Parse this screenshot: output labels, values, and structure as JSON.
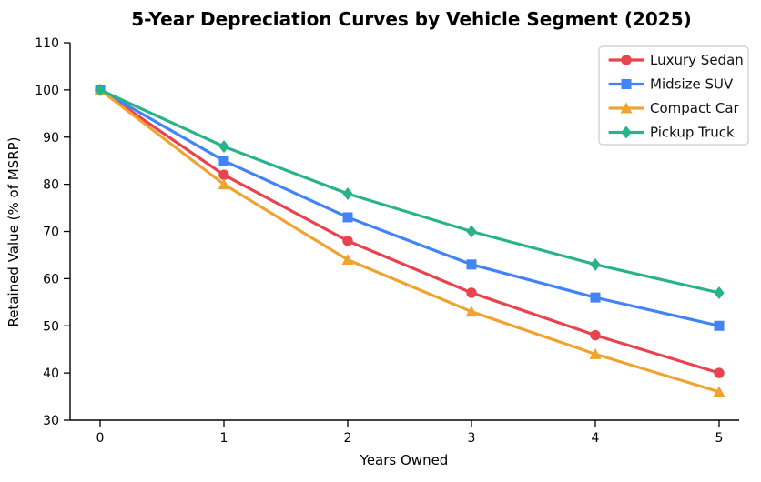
{
  "title": "5-Year Depreciation Curves by Vehicle Segment (2025)",
  "chart_data": {
    "type": "line",
    "title": "5-Year Depreciation Curves by Vehicle Segment (2025)",
    "xlabel": "Years Owned",
    "ylabel": "Retained Value (% of MSRP)",
    "x": [
      0,
      1,
      2,
      3,
      4,
      5
    ],
    "xticks": [
      "0",
      "1",
      "2",
      "3",
      "4",
      "5"
    ],
    "yticks": [
      "30",
      "40",
      "50",
      "60",
      "70",
      "80",
      "90",
      "100",
      "110"
    ],
    "ylim": [
      30,
      110
    ],
    "grid": false,
    "legend_position": "top-right",
    "series": [
      {
        "name": "Luxury Sedan",
        "marker": "circle",
        "color": "#e8434e",
        "values": [
          100,
          82,
          68,
          57,
          48,
          40
        ]
      },
      {
        "name": "Midsize SUV",
        "marker": "square",
        "color": "#4284f5",
        "values": [
          100,
          85,
          73,
          63,
          56,
          50
        ]
      },
      {
        "name": "Compact Car",
        "marker": "triangle",
        "color": "#f0a330",
        "values": [
          100,
          80,
          64,
          53,
          44,
          36
        ]
      },
      {
        "name": "Pickup Truck",
        "marker": "diamond",
        "color": "#29b38a",
        "values": [
          100,
          88,
          78,
          70,
          63,
          57
        ]
      }
    ]
  }
}
